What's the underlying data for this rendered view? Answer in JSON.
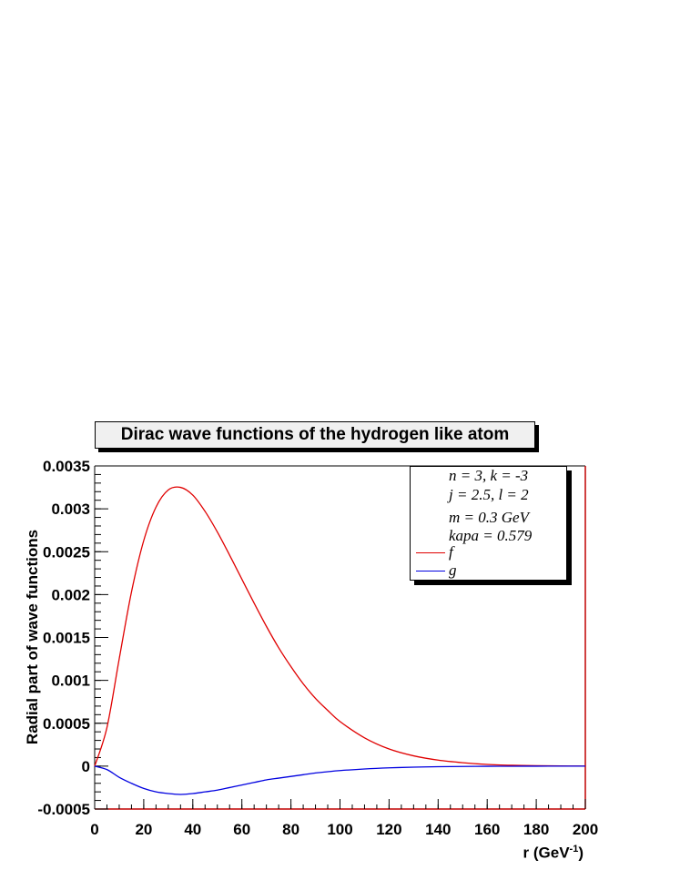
{
  "chart_data": {
    "type": "line",
    "title": "Dirac wave functions of the hydrogen like atom",
    "xlabel_base": "r (GeV",
    "xlabel_sup": "-1",
    "xlabel_tail": ")",
    "ylabel": "Radial part of wave functions",
    "xlim": [
      0,
      200
    ],
    "ylim": [
      -0.0005,
      0.0035
    ],
    "x_ticks": [
      "0",
      "20",
      "40",
      "60",
      "80",
      "100",
      "120",
      "140",
      "160",
      "180",
      "200"
    ],
    "y_ticks": [
      "-0.0005",
      "0",
      "0.0005",
      "0.001",
      "0.0015",
      "0.002",
      "0.0025",
      "0.003",
      "0.0035"
    ],
    "grid": false,
    "legend_position": "top-right",
    "legend_info": [
      "n = 3, k = -3",
      "j = 2.5, l = 2",
      "m = 0.3 GeV",
      "kapa = 0.579"
    ],
    "x": [
      0,
      5,
      10,
      15,
      20,
      25,
      30,
      35,
      40,
      45,
      50,
      55,
      60,
      65,
      70,
      75,
      80,
      85,
      90,
      95,
      100,
      110,
      120,
      130,
      140,
      150,
      160,
      170,
      180,
      190,
      200
    ],
    "series": [
      {
        "name": "f",
        "color": "#e00000",
        "values": [
          0,
          0.00045,
          0.00125,
          0.00203,
          0.00263,
          0.00302,
          0.00322,
          0.00325,
          0.00316,
          0.00297,
          0.00273,
          0.00246,
          0.00218,
          0.0019,
          0.00163,
          0.00138,
          0.00116,
          0.00096,
          0.00079,
          0.00065,
          0.00052,
          0.00033,
          0.0002,
          0.00012,
          7e-05,
          4e-05,
          2e-05,
          1e-05,
          5e-06,
          2e-06,
          0
        ]
      },
      {
        "name": "g",
        "color": "#0000e0",
        "values": [
          0,
          -4e-05,
          -0.00013,
          -0.0002,
          -0.00026,
          -0.0003,
          -0.00032,
          -0.00033,
          -0.00032,
          -0.0003,
          -0.00028,
          -0.00025,
          -0.00022,
          -0.00019,
          -0.00016,
          -0.00014,
          -0.00012,
          -0.0001,
          -8e-05,
          -6.5e-05,
          -5.2e-05,
          -3.3e-05,
          -2e-05,
          -1.2e-05,
          -7e-06,
          -4e-06,
          -2e-06,
          -1e-06,
          -5e-07,
          -2e-07,
          0
        ]
      }
    ]
  }
}
